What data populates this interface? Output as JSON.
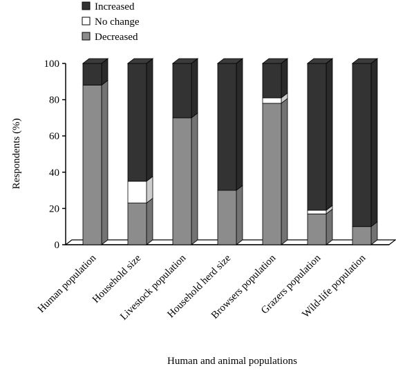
{
  "chart_data": {
    "type": "bar",
    "stacked": true,
    "three_d": true,
    "title": "",
    "xlabel": "Human and animal populations",
    "ylabel": "Respondents (%)",
    "ylim": [
      0,
      100
    ],
    "yticks": [
      0,
      20,
      40,
      60,
      80,
      100
    ],
    "grid": false,
    "legend_position": "top-left",
    "categories": [
      "Human population",
      "Household size",
      "Livestock population",
      "Household herd size",
      "Browsers population",
      "Grazers population",
      "Wild-life population"
    ],
    "series": [
      {
        "name": "Decreased",
        "color": "#8c8c8c",
        "values": [
          88,
          23,
          70,
          30,
          78,
          17,
          10
        ]
      },
      {
        "name": "No change",
        "color": "#ffffff",
        "values": [
          0,
          12,
          0,
          0,
          3,
          2,
          0
        ]
      },
      {
        "name": "Increased",
        "color": "#333333",
        "values": [
          12,
          65,
          30,
          70,
          19,
          81,
          90
        ]
      }
    ],
    "legend_order": [
      "Increased",
      "No change",
      "Decreased"
    ]
  }
}
